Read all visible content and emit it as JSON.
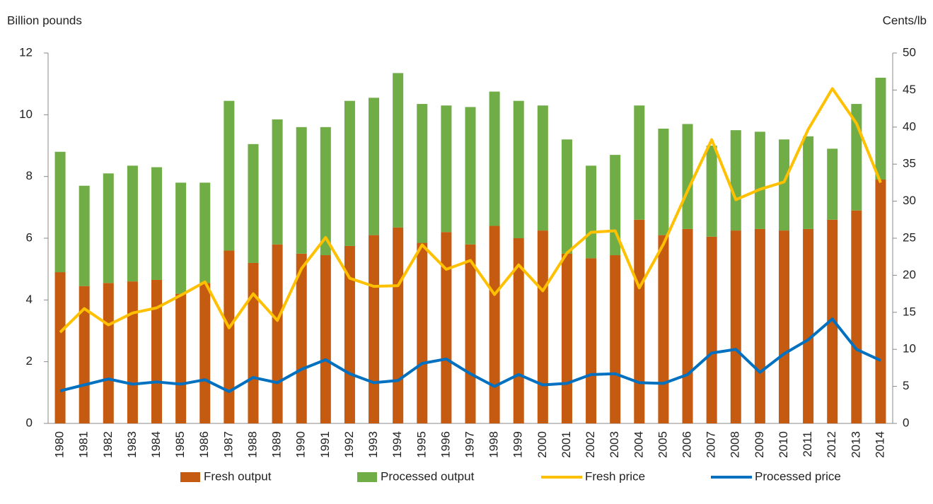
{
  "chart_data": {
    "type": "bar",
    "stacked": true,
    "y_label": "Billion pounds",
    "y2_label": "Cents/lb",
    "categories": [
      "1980",
      "1981",
      "1982",
      "1983",
      "1984",
      "1985",
      "1986",
      "1987",
      "1988",
      "1989",
      "1990",
      "1991",
      "1992",
      "1993",
      "1994",
      "1995",
      "1996",
      "1997",
      "1998",
      "1999",
      "2000",
      "2001",
      "2002",
      "2003",
      "2004",
      "2005",
      "2006",
      "2007",
      "2008",
      "2009",
      "2010",
      "2011",
      "2012",
      "2013",
      "2014"
    ],
    "series": [
      {
        "name": "Fresh output",
        "type": "bar",
        "color": "#c55a11",
        "values": [
          4.9,
          4.45,
          4.55,
          4.6,
          4.65,
          4.2,
          4.55,
          5.6,
          5.2,
          5.8,
          5.5,
          5.45,
          5.75,
          6.1,
          6.35,
          5.85,
          6.2,
          5.8,
          6.4,
          6.0,
          6.25,
          5.5,
          5.35,
          5.45,
          6.6,
          6.1,
          6.3,
          6.05,
          6.25,
          6.3,
          6.25,
          6.3,
          6.6,
          6.9,
          7.9
        ]
      },
      {
        "name": "Processed output",
        "type": "bar",
        "color": "#70ad47",
        "values": [
          3.9,
          3.25,
          3.55,
          3.75,
          3.65,
          3.6,
          3.25,
          4.85,
          3.85,
          4.05,
          4.1,
          4.15,
          4.7,
          4.45,
          5.0,
          4.5,
          4.1,
          4.45,
          4.35,
          4.45,
          4.05,
          3.7,
          3.0,
          3.25,
          3.7,
          3.45,
          3.4,
          2.95,
          3.25,
          3.15,
          2.95,
          3.0,
          2.3,
          3.45,
          3.3
        ]
      },
      {
        "name": "Fresh price",
        "type": "line",
        "axis": "y2",
        "color": "#ffc000",
        "values": [
          12.3,
          15.5,
          13.3,
          14.9,
          15.6,
          17.3,
          19.1,
          12.9,
          17.5,
          13.9,
          20.9,
          25.1,
          19.6,
          18.5,
          18.6,
          24.1,
          20.8,
          22.0,
          17.4,
          21.4,
          17.9,
          23.0,
          25.8,
          26.0,
          18.3,
          24.2,
          31.4,
          38.3,
          30.2,
          31.6,
          32.6,
          39.7,
          45.2,
          40.5,
          32.5
        ]
      },
      {
        "name": "Processed price",
        "type": "line",
        "axis": "y2",
        "color": "#0070c0",
        "values": [
          4.4,
          5.2,
          6.0,
          5.3,
          5.6,
          5.3,
          5.9,
          4.3,
          6.2,
          5.5,
          7.3,
          8.6,
          6.7,
          5.5,
          5.8,
          8.1,
          8.7,
          6.7,
          5.0,
          6.6,
          5.2,
          5.4,
          6.6,
          6.7,
          5.5,
          5.4,
          6.6,
          9.5,
          10.0,
          6.9,
          9.4,
          11.3,
          14.1,
          10.0,
          8.5
        ]
      }
    ],
    "ylim": [
      0,
      12
    ],
    "yticks": [
      0,
      2,
      4,
      6,
      8,
      10,
      12
    ],
    "y2lim": [
      0,
      50
    ],
    "y2ticks": [
      0,
      5,
      10,
      15,
      20,
      25,
      30,
      35,
      40,
      45,
      50
    ],
    "legend": "bottom",
    "grid": false
  }
}
